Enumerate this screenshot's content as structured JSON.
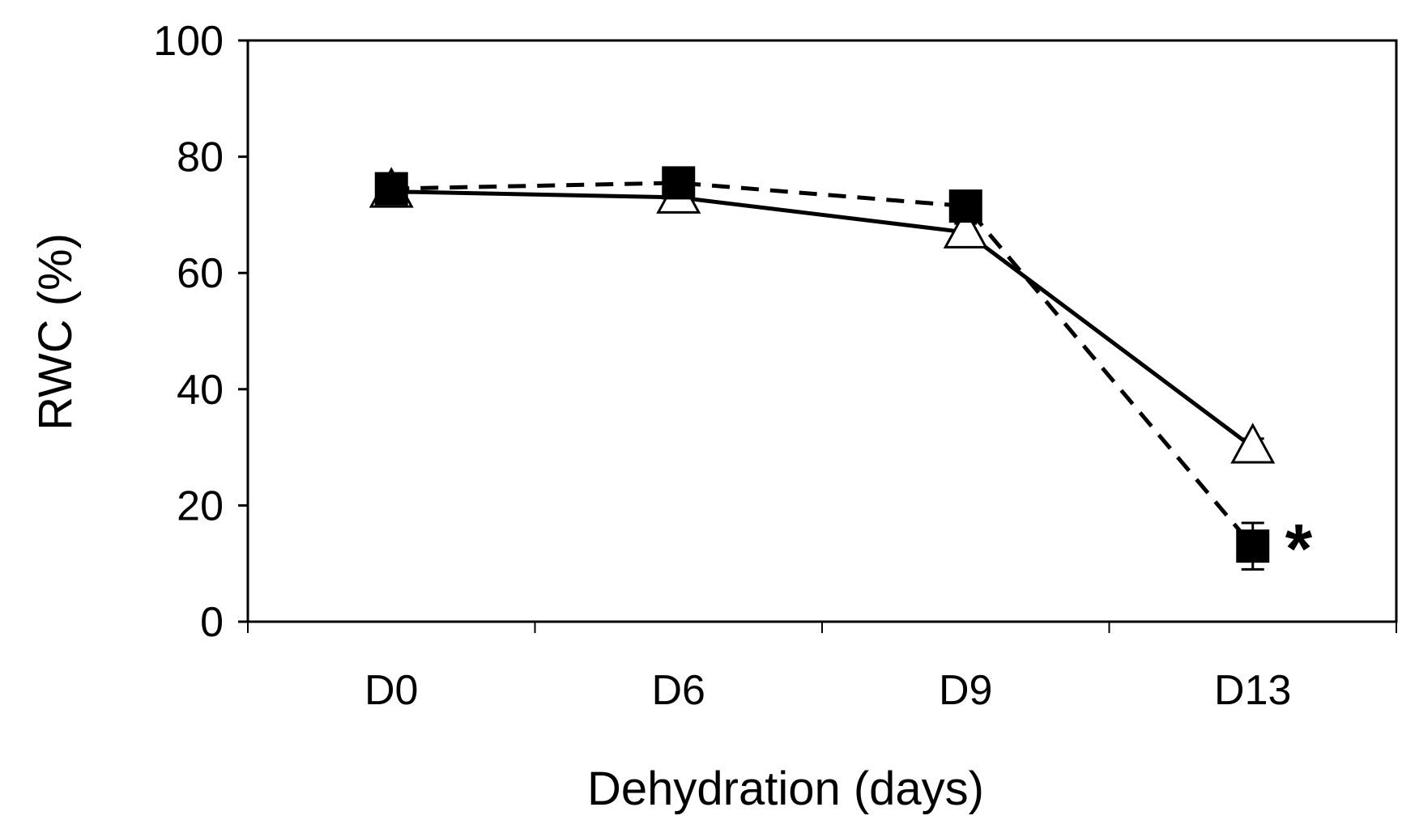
{
  "chart_data": {
    "type": "line",
    "title": "",
    "xlabel": "Dehydration (days)",
    "ylabel": "RWC (%)",
    "categories": [
      "D0",
      "D6",
      "D9",
      "D13"
    ],
    "ylim": [
      0,
      100
    ],
    "yticks": [
      0,
      20,
      40,
      60,
      80,
      100
    ],
    "grid": false,
    "legend": "none",
    "series": [
      {
        "name": "solid line, open triangles",
        "line_style": "solid",
        "marker": "open-triangle",
        "values": [
          74,
          73,
          67,
          30
        ],
        "errors": [
          2,
          1.5,
          1.5,
          1.5
        ]
      },
      {
        "name": "dashed line, filled squares",
        "line_style": "dashed",
        "marker": "filled-square",
        "values": [
          74.5,
          75.5,
          71.5,
          13
        ],
        "errors": [
          1.5,
          1.5,
          1.5,
          4
        ]
      }
    ],
    "annotations": [
      {
        "text": "*",
        "category": "D13",
        "y": 14
      }
    ],
    "colors": {
      "line": "#000000",
      "background": "#ffffff"
    }
  }
}
